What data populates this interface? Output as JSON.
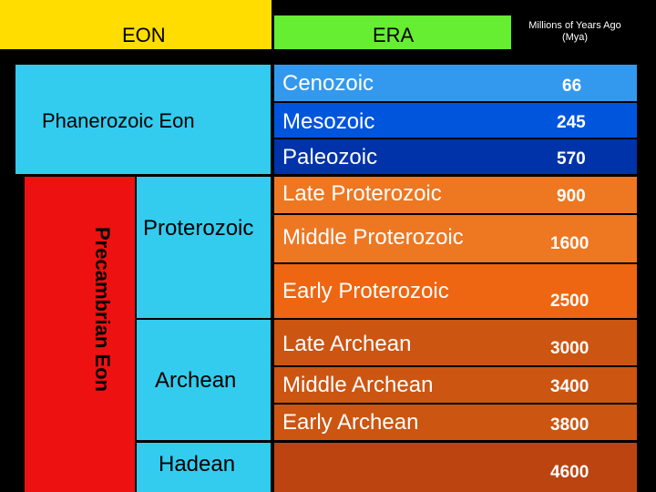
{
  "header": {
    "eon": "EON",
    "era": "ERA",
    "mya": "Millions of Years Ago (Mya)"
  },
  "eons": {
    "phanerozoic": "Phanerozoic Eon",
    "precambrian": "Precambrian Eon",
    "proterozoic": "Proterozoic",
    "archean": "Archean",
    "hadean": "Hadean"
  },
  "eras": [
    {
      "label": "Cenozoic",
      "mya": "66"
    },
    {
      "label": "Mesozoic",
      "mya": "245"
    },
    {
      "label": "Paleozoic",
      "mya": "570"
    },
    {
      "label": "Late Proterozoic",
      "mya": "900"
    },
    {
      "label": "Middle Proterozoic",
      "mya": "1600"
    },
    {
      "label": "Early Proterozoic",
      "mya": "2500"
    },
    {
      "label": "Late Archean",
      "mya": "3000"
    },
    {
      "label": "Middle Archean",
      "mya": "3400"
    },
    {
      "label": "Early Archean",
      "mya": "3800"
    },
    {
      "label": "",
      "mya": "4600"
    }
  ],
  "colors": {
    "header_eon": "#ffdd00",
    "header_era": "#66ee33",
    "phanerozoic": "#33ccee",
    "precambrian": "#ee1111",
    "proterozoic": "#33ccee",
    "archean": "#33ccee",
    "hadean": "#33ccee",
    "cenozoic": "#3399ee",
    "mesozoic": "#0055dd",
    "paleozoic": "#0033aa",
    "proterozoic_eras": "#ee7722",
    "early_proterozoic": "#ee6611",
    "archean_eras": "#cc5511",
    "hadean_era": "#bb4411"
  }
}
